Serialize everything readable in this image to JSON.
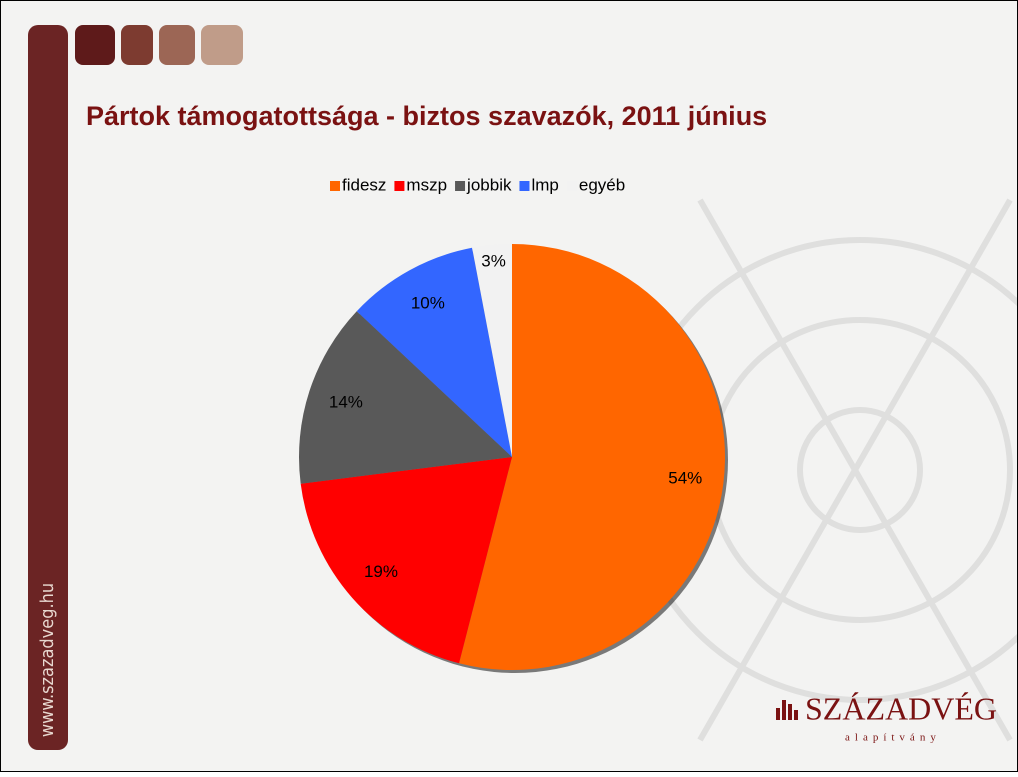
{
  "chart_data": {
    "type": "pie",
    "title": "Pártok támogatottsága - biztos szavazók, 2011 június",
    "categories": [
      "fidesz",
      "mszp",
      "jobbik",
      "lmp",
      "egyéb"
    ],
    "values": [
      54,
      19,
      14,
      10,
      3
    ],
    "value_labels": [
      "54%",
      "19%",
      "14%",
      "10%",
      "3%"
    ],
    "colors": [
      "#ff6600",
      "#ff0000",
      "#595959",
      "#3366ff",
      "#f2f2f2"
    ],
    "legend": "top"
  },
  "sidebar": {
    "text": "www.szazadveg.hu"
  },
  "logo": {
    "name": "SZÁZADVÉG",
    "subtitle": "alapítvány"
  }
}
